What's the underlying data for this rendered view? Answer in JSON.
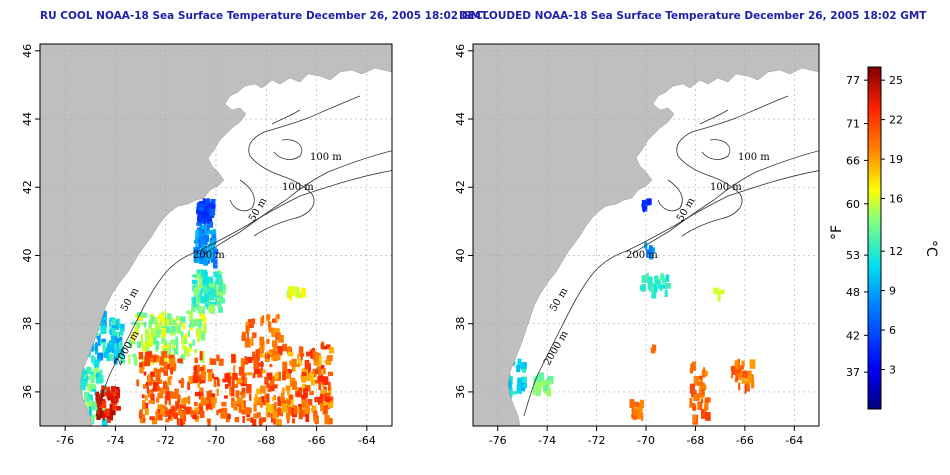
{
  "titles": {
    "left": "RU COOL NOAA-18 Sea Surface Temperature December 26, 2005 18:02 GMT",
    "right": "DECLOUDED NOAA-18 Sea Surface Temperature December 26, 2005 18:02 GMT"
  },
  "axes": {
    "x_ticks": [
      -76,
      -74,
      -72,
      -70,
      -68,
      -66,
      -64
    ],
    "x_tick_labels": [
      "-76",
      "-74",
      "-72",
      "-70",
      "-68",
      "-66",
      "-64"
    ],
    "y_ticks": [
      36,
      38,
      40,
      42,
      44,
      46
    ],
    "y_tick_labels": [
      "36",
      "38",
      "40",
      "42",
      "44",
      "46"
    ],
    "lon_range": [
      -77.0,
      -63.0
    ],
    "lat_range": [
      35.0,
      46.2
    ]
  },
  "contour_labels": {
    "c100a": "100 m",
    "c100b": "100 m",
    "c50": "50 m",
    "c200": "200 m",
    "c50b": "50 m",
    "c2000": "2000 m"
  },
  "colorbar": {
    "f_unit": "°F",
    "c_unit": "°C",
    "f_labels": [
      {
        "t": "77",
        "c": 25
      },
      {
        "t": "71",
        "c": 21.7
      },
      {
        "t": "66",
        "c": 18.9
      },
      {
        "t": "60",
        "c": 15.6
      },
      {
        "t": "53",
        "c": 11.7
      },
      {
        "t": "48",
        "c": 8.9
      },
      {
        "t": "42",
        "c": 5.6
      },
      {
        "t": "37",
        "c": 2.8
      }
    ],
    "c_labels": [
      {
        "t": "25",
        "c": 25
      },
      {
        "t": "22",
        "c": 22
      },
      {
        "t": "19",
        "c": 19
      },
      {
        "t": "16",
        "c": 16
      },
      {
        "t": "12",
        "c": 12
      },
      {
        "t": "9",
        "c": 9
      },
      {
        "t": "6",
        "c": 6
      },
      {
        "t": "3",
        "c": 3
      }
    ],
    "range_c": [
      0,
      26
    ]
  },
  "colors": {
    "land": "#bfbfbf",
    "title": "#1f1faa",
    "grid": "#aaaaaa",
    "contour": "#333333"
  }
}
